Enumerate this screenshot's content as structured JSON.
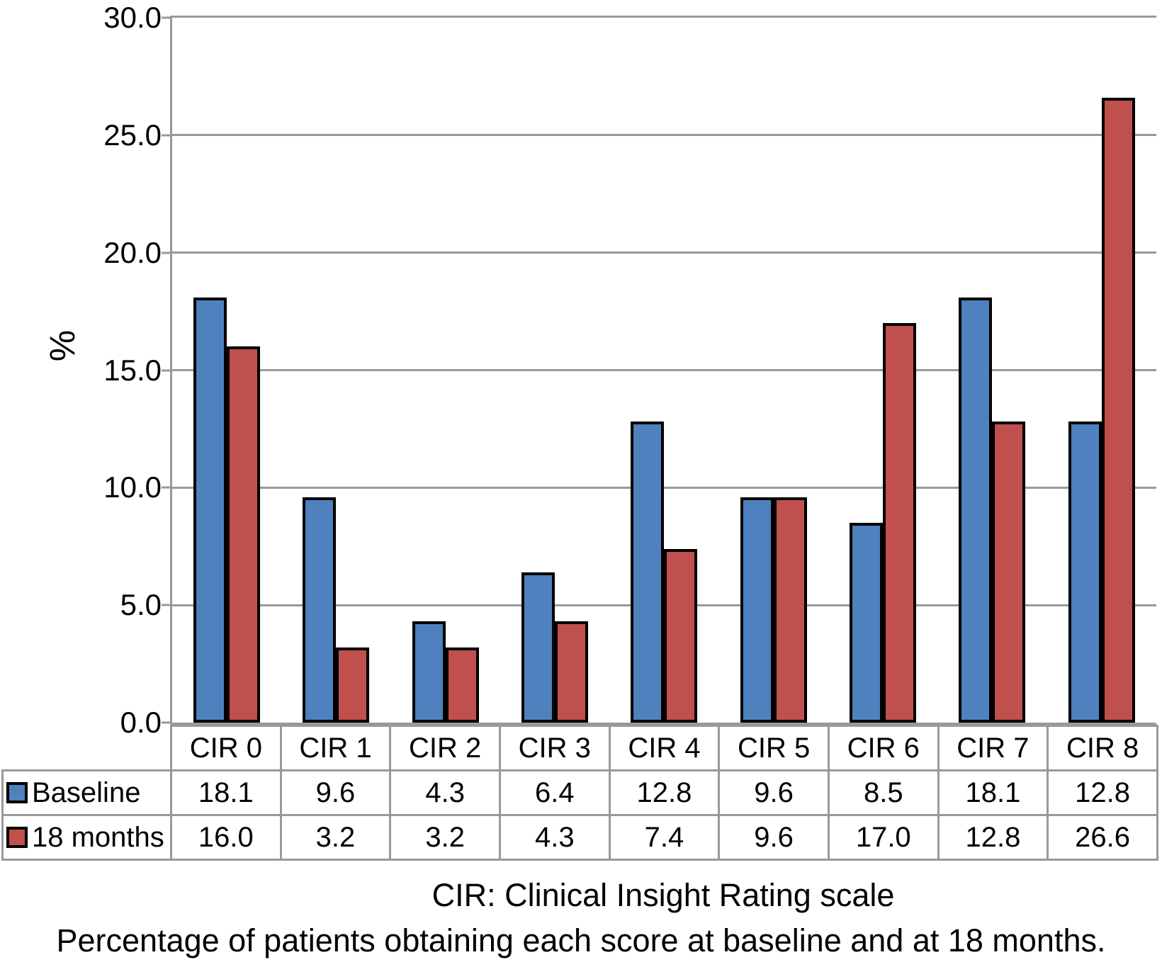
{
  "chart_data": {
    "type": "bar",
    "title": "",
    "xlabel": "",
    "ylabel": "%",
    "ylim": [
      0,
      30
    ],
    "ytick_step": 5,
    "ytick_labels": [
      "0.0",
      "5.0",
      "10.0",
      "15.0",
      "20.0",
      "25.0",
      "30.0"
    ],
    "grid": true,
    "legend_position": "table-left",
    "categories": [
      "CIR 0",
      "CIR 1",
      "CIR 2",
      "CIR 3",
      "CIR 4",
      "CIR 5",
      "CIR 6",
      "CIR 7",
      "CIR 8"
    ],
    "series": [
      {
        "name": "Baseline",
        "color": "#4E81BD",
        "values": [
          18.1,
          9.6,
          4.3,
          6.4,
          12.8,
          9.6,
          8.5,
          18.1,
          12.8
        ]
      },
      {
        "name": "18 months",
        "color": "#C0504D",
        "values": [
          16.0,
          3.2,
          3.2,
          4.3,
          7.4,
          9.6,
          17.0,
          12.8,
          26.6
        ]
      }
    ],
    "colors": {
      "bar_outline": "#000000",
      "gridline": "#999999",
      "table_border": "#999999",
      "text": "#000000"
    }
  },
  "captions": {
    "line1": "CIR: Clinical Insight Rating scale",
    "line2": "Percentage of patients obtaining each score at baseline and at 18 months."
  }
}
